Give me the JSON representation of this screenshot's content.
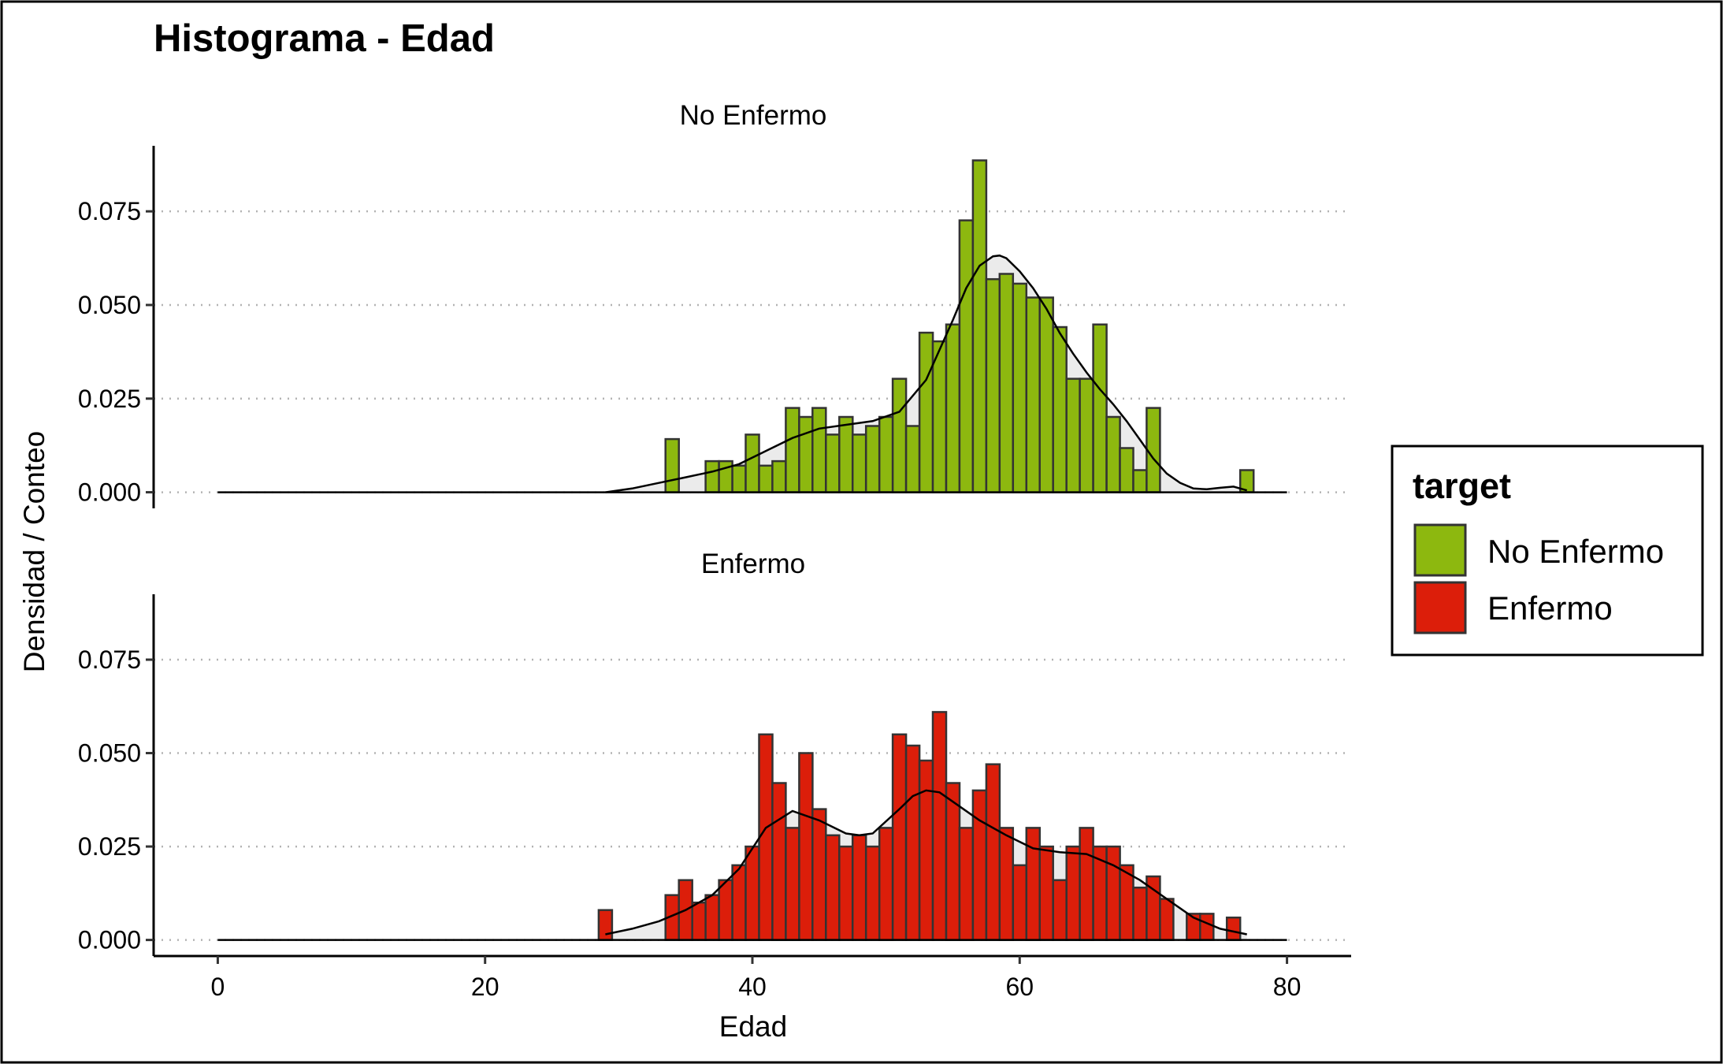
{
  "chart_data": {
    "type": "bar",
    "title": "Histograma - Edad",
    "xlabel": "Edad",
    "ylabel": "Densidad / Conteo",
    "xlim": [
      -4.8,
      84.8
    ],
    "ylim": [
      -0.0043,
      0.0925
    ],
    "x_ticks": [
      "0",
      "20",
      "40",
      "60",
      "80"
    ],
    "y_ticks": [
      "0.000",
      "0.025",
      "0.050",
      "0.075"
    ],
    "grid": "horizontal-dotted",
    "bin_width": 1,
    "legend": {
      "title": "target",
      "position": "right",
      "entries": [
        "No Enfermo",
        "Enfermo"
      ]
    },
    "facets": [
      {
        "label": "No Enfermo",
        "color": "#8db80f",
        "bars": {
          "x": [
            34,
            37,
            38,
            39,
            40,
            41,
            42,
            43,
            44,
            45,
            46,
            47,
            48,
            49,
            50,
            51,
            52,
            53,
            54,
            55,
            56,
            57,
            58,
            59,
            60,
            61,
            62,
            63,
            64,
            65,
            66,
            67,
            68,
            69,
            70,
            77
          ],
          "y": [
            0.0142,
            0.0083,
            0.0083,
            0.0071,
            0.0154,
            0.0071,
            0.0083,
            0.0225,
            0.0201,
            0.0225,
            0.0154,
            0.0201,
            0.0154,
            0.0177,
            0.0201,
            0.0303,
            0.0177,
            0.0426,
            0.0403,
            0.0448,
            0.0726,
            0.0886,
            0.0569,
            0.0583,
            0.0557,
            0.052,
            0.052,
            0.0441,
            0.0303,
            0.0303,
            0.0448,
            0.0201,
            0.0118,
            0.0059,
            0.0225,
            0.0059
          ]
        },
        "density": {
          "x": [
            29,
            31,
            33,
            35,
            37,
            39,
            41,
            43,
            45,
            47,
            49,
            51,
            53,
            54,
            55,
            56,
            57,
            58,
            58.5,
            59,
            60,
            61,
            62,
            63,
            64,
            65,
            66,
            67,
            68,
            69,
            70,
            71,
            72,
            73,
            74,
            75,
            76,
            77
          ],
          "y": [
            0.0,
            0.001,
            0.0025,
            0.004,
            0.0055,
            0.0075,
            0.011,
            0.0145,
            0.017,
            0.018,
            0.019,
            0.0215,
            0.03,
            0.038,
            0.046,
            0.0545,
            0.0605,
            0.063,
            0.0632,
            0.0625,
            0.059,
            0.0545,
            0.049,
            0.0425,
            0.037,
            0.032,
            0.0275,
            0.0235,
            0.019,
            0.014,
            0.009,
            0.005,
            0.0025,
            0.001,
            0.0008,
            0.0012,
            0.0015,
            0.0005
          ]
        }
      },
      {
        "label": "Enfermo",
        "color": "#dc1e0a",
        "bars": {
          "x": [
            29,
            34,
            35,
            36,
            37,
            38,
            39,
            40,
            41,
            42,
            43,
            44,
            45,
            46,
            47,
            48,
            49,
            50,
            51,
            52,
            53,
            54,
            55,
            56,
            57,
            58,
            59,
            60,
            61,
            62,
            63,
            64,
            65,
            66,
            67,
            68,
            69,
            70,
            71,
            73,
            74,
            76
          ],
          "y": [
            0.008,
            0.012,
            0.016,
            0.01,
            0.012,
            0.016,
            0.02,
            0.025,
            0.055,
            0.042,
            0.03,
            0.05,
            0.035,
            0.028,
            0.025,
            0.028,
            0.025,
            0.03,
            0.055,
            0.052,
            0.048,
            0.061,
            0.042,
            0.03,
            0.04,
            0.047,
            0.03,
            0.02,
            0.03,
            0.025,
            0.016,
            0.025,
            0.03,
            0.025,
            0.025,
            0.02,
            0.014,
            0.017,
            0.011,
            0.007,
            0.007,
            0.006
          ]
        },
        "density": {
          "x": [
            29,
            31,
            33,
            35,
            37,
            39,
            41,
            43,
            45,
            47,
            48,
            49,
            51,
            52,
            53,
            54,
            55,
            57,
            59,
            61,
            63,
            65,
            67,
            69,
            71,
            73,
            75,
            77
          ],
          "y": [
            0.0015,
            0.003,
            0.005,
            0.008,
            0.012,
            0.019,
            0.03,
            0.0345,
            0.032,
            0.0285,
            0.028,
            0.0285,
            0.035,
            0.0385,
            0.04,
            0.0395,
            0.037,
            0.032,
            0.028,
            0.0245,
            0.0235,
            0.023,
            0.02,
            0.016,
            0.011,
            0.006,
            0.003,
            0.0015
          ]
        }
      }
    ]
  }
}
